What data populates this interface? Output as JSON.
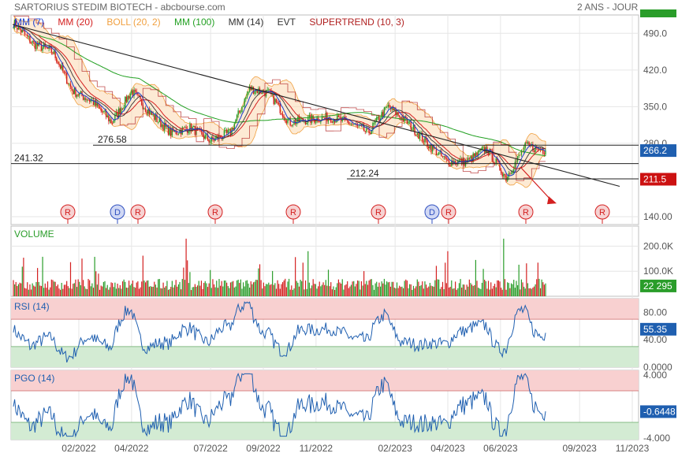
{
  "header": {
    "title": "SARTORIUS STEDIM BIOTECH - abcbourse.com",
    "period": "2 ANS - JOUR"
  },
  "legend": [
    {
      "label": "MM (7)",
      "color": "#1a3fcf"
    },
    {
      "label": "MM (20)",
      "color": "#d42020"
    },
    {
      "label": "BOLL (20, 2)",
      "color": "#f0a040"
    },
    {
      "label": "MM (100)",
      "color": "#22a022"
    },
    {
      "label": "MM (14)",
      "color": "#333333"
    },
    {
      "label": "EVT",
      "color": "#333333"
    },
    {
      "label": "SUPERTREND (10, 3)",
      "color": "#b02020"
    }
  ],
  "panels": {
    "volume": "VOLUME",
    "rsi": "RSI (14)",
    "pgo": "PGO (14)"
  },
  "colors": {
    "up": "#2a9d2a",
    "down": "#d42020",
    "rsi_line": "#1f5fb0",
    "pgo_line": "#1f5fb0",
    "price_badge": "#1f5fb0",
    "support_badge": "#cc1111",
    "volume_badge": "#2a9d2a"
  },
  "chart_data": [
    {
      "type": "line",
      "name": "price",
      "ylim": [
        125,
        525
      ],
      "y_ticks": [
        "490.0",
        "420.0",
        "350.0",
        "280.0",
        "140.00"
      ],
      "x_ticks": [
        "02/2022",
        "04/2022",
        "07/2022",
        "09/2022",
        "11/2022",
        "02/2023",
        "04/2023",
        "06/2023",
        "09/2023",
        "11/2023"
      ],
      "x_label_range": [
        "2022-02",
        "2023-11"
      ],
      "close_path": [
        [
          "2021-11",
          510
        ],
        [
          "2021-12",
          470
        ],
        [
          "2022-01",
          455
        ],
        [
          "2022-01",
          380
        ],
        [
          "2022-02",
          360
        ],
        [
          "2022-03",
          320
        ],
        [
          "2022-03",
          380
        ],
        [
          "2022-04",
          335
        ],
        [
          "2022-05",
          300
        ],
        [
          "2022-06",
          310
        ],
        [
          "2022-06",
          285
        ],
        [
          "2022-07",
          300
        ],
        [
          "2022-08",
          385
        ],
        [
          "2022-09",
          375
        ],
        [
          "2022-09",
          320
        ],
        [
          "2022-10",
          325
        ],
        [
          "2022-11",
          330
        ],
        [
          "2022-12",
          320
        ],
        [
          "2023-01",
          300
        ],
        [
          "2023-02",
          350
        ],
        [
          "2023-03",
          320
        ],
        [
          "2023-04",
          280
        ],
        [
          "2023-04",
          245
        ],
        [
          "2023-05",
          245
        ],
        [
          "2023-06",
          270
        ],
        [
          "2023-06",
          215
        ],
        [
          "2023-07",
          275
        ],
        [
          "2023-07",
          266.2
        ]
      ],
      "trendline_points": [
        [
          510,
          "start"
        ],
        [
          211.5,
          "end"
        ]
      ],
      "horizontal_levels": [
        {
          "label": "276.58",
          "value": 276.58
        },
        {
          "label": "241.32",
          "value": 241.32
        },
        {
          "label": "212.24",
          "value": 212.24
        }
      ],
      "last_price": "266.2",
      "support_value": "211.5",
      "events": [
        {
          "label": "R",
          "color": "#d42020"
        },
        {
          "label": "D",
          "color": "#3050c0"
        },
        {
          "label": "R",
          "color": "#d42020"
        },
        {
          "label": "R",
          "color": "#d42020"
        },
        {
          "label": "R",
          "color": "#d42020"
        },
        {
          "label": "R",
          "color": "#d42020"
        },
        {
          "label": "D",
          "color": "#3050c0"
        },
        {
          "label": "R",
          "color": "#d42020"
        },
        {
          "label": "R",
          "color": "#d42020"
        },
        {
          "label": "R",
          "color": "#d42020"
        }
      ]
    },
    {
      "type": "bar",
      "name": "volume",
      "ylim": [
        0,
        280000
      ],
      "y_ticks": [
        "200.0K",
        "100.0K"
      ],
      "last_value": "22 295"
    },
    {
      "type": "line",
      "name": "rsi",
      "ylim": [
        0,
        100
      ],
      "bands": [
        70,
        30
      ],
      "y_ticks": [
        "80.00",
        "40.00",
        "0.0000"
      ],
      "last_value": "55.35"
    },
    {
      "type": "line",
      "name": "pgo",
      "ylim": [
        -4.2,
        4.6
      ],
      "bands": [
        2,
        -2
      ],
      "y_ticks": [
        "4.000",
        "-4.000"
      ],
      "last_value": "-0.6448"
    }
  ]
}
